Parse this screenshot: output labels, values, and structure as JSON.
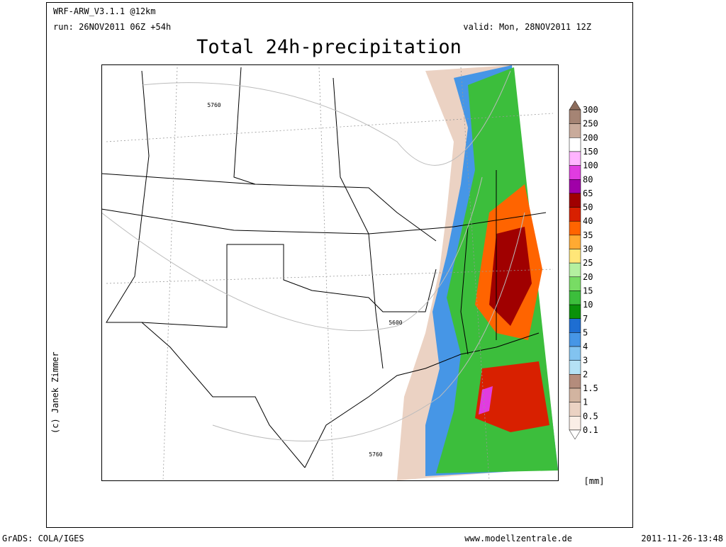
{
  "header": {
    "model": "WRF-ARW_V3.1.1 @12km",
    "run": "run: 26NOV2011 06Z +54h",
    "valid": "valid: Mon, 28NOV2011 12Z"
  },
  "title": "Total 24h-precipitation",
  "colorbar": {
    "labels": [
      "300",
      "250",
      "200",
      "150",
      "100",
      "80",
      "65",
      "50",
      "40",
      "35",
      "30",
      "25",
      "20",
      "15",
      "10",
      "7",
      "5",
      "4",
      "3",
      "2",
      "1.5",
      "1",
      "0.5",
      "0.1"
    ],
    "colors": [
      "#8c6c5c",
      "#a58474",
      "#c9ab9b",
      "#ffffff",
      "#ffb4ff",
      "#e03ce0",
      "#a000a8",
      "#a00000",
      "#d82000",
      "#ff6400",
      "#ffaa32",
      "#ffe678",
      "#b4f0a0",
      "#78dc64",
      "#3cbe3c",
      "#0a910a",
      "#1e6ed2",
      "#4696e6",
      "#82c3f0",
      "#b4e1f5",
      "#b48c7c",
      "#d2b4a0",
      "#ebd2c3",
      "#faeee6",
      "#ffffff"
    ],
    "unit": "[mm]"
  },
  "map": {
    "contour_labels": [
      "5760",
      "5600",
      "5760"
    ]
  },
  "credits": {
    "author": "(c) Janek Zimmer",
    "software": "GrADS: COLA/IGES",
    "website": "www.modellzentrale.de",
    "timestamp": "2011-11-26-13:48"
  }
}
